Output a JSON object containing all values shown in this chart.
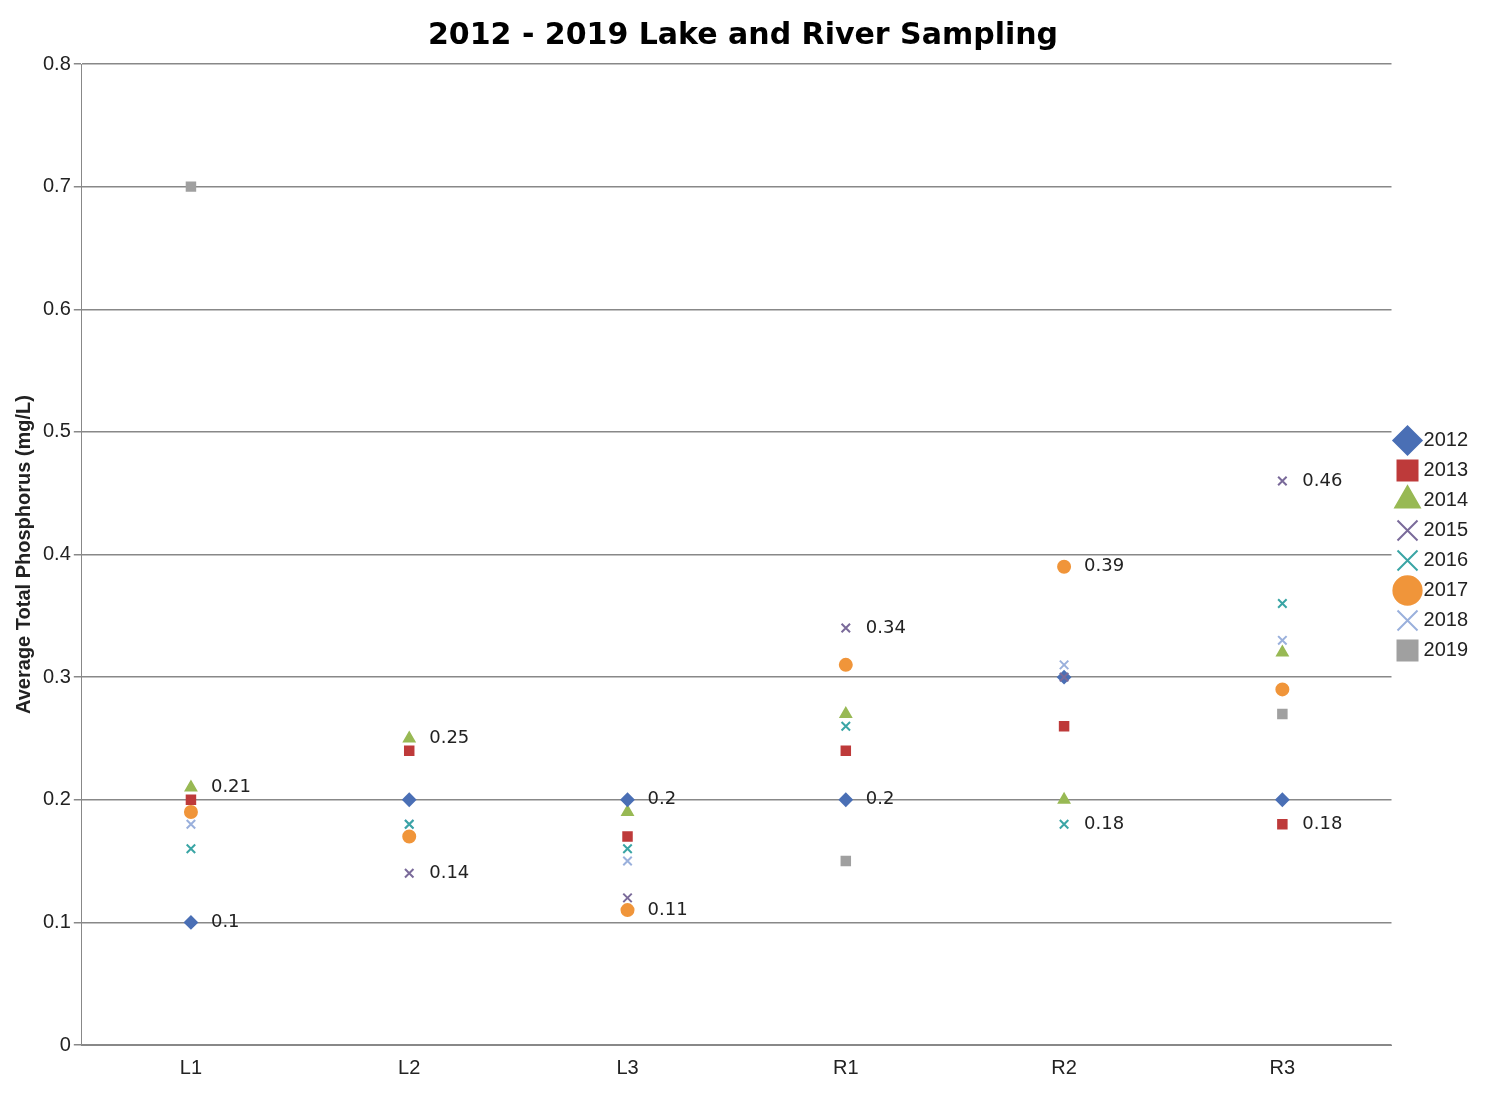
{
  "chart_data": {
    "type": "scatter",
    "title": "2012 - 2019 Lake and River Sampling",
    "ylabel": "Average Total Phosphorus (mg/L)",
    "categories": [
      "L1",
      "L2",
      "L3",
      "R1",
      "R2",
      "R3"
    ],
    "ylim": [
      0,
      0.8
    ],
    "yticks": [
      0,
      0.1,
      0.2,
      0.3,
      0.4,
      0.5,
      0.6,
      0.7,
      0.8
    ],
    "grid": "y",
    "legend": "right",
    "series": [
      {
        "name": "2012",
        "color": "#4a6fb5",
        "marker": "diamond",
        "values": [
          0.1,
          0.2,
          0.2,
          0.2,
          0.3,
          0.2
        ],
        "value_labels": [
          "0.1",
          null,
          "0.2",
          "0.2",
          null,
          null
        ]
      },
      {
        "name": "2013",
        "color": "#be3a3a",
        "marker": "square",
        "values": [
          0.2,
          0.24,
          0.17,
          0.24,
          0.26,
          0.18
        ],
        "value_labels": [
          null,
          null,
          null,
          null,
          null,
          "0.18"
        ]
      },
      {
        "name": "2014",
        "color": "#98b954",
        "marker": "triangle",
        "values": [
          0.21,
          0.25,
          0.19,
          0.27,
          0.2,
          0.32
        ],
        "value_labels": [
          "0.21",
          "0.25",
          null,
          null,
          null,
          null
        ]
      },
      {
        "name": "2015",
        "color": "#7a6a9a",
        "marker": "cross",
        "values": [
          null,
          0.14,
          0.12,
          0.34,
          0.3,
          0.46
        ],
        "value_labels": [
          null,
          "0.14",
          null,
          "0.34",
          null,
          "0.46"
        ]
      },
      {
        "name": "2016",
        "color": "#3aa5a5",
        "marker": "cross",
        "values": [
          0.16,
          0.18,
          0.16,
          0.26,
          0.18,
          0.36
        ],
        "value_labels": [
          null,
          null,
          null,
          null,
          "0.18",
          null
        ]
      },
      {
        "name": "2017",
        "color": "#f0953a",
        "marker": "circle",
        "values": [
          0.19,
          0.17,
          0.11,
          0.31,
          0.39,
          0.29
        ],
        "value_labels": [
          null,
          null,
          "0.11",
          null,
          "0.39",
          null
        ]
      },
      {
        "name": "2018",
        "color": "#9ab0dc",
        "marker": "cross",
        "values": [
          0.18,
          0.18,
          0.15,
          null,
          0.31,
          0.33
        ],
        "value_labels": [
          null,
          null,
          null,
          null,
          null,
          null
        ]
      },
      {
        "name": "2019",
        "color": "#a0a0a0",
        "marker": "square",
        "values": [
          0.7,
          null,
          null,
          0.15,
          null,
          0.27
        ],
        "value_labels": [
          null,
          null,
          null,
          null,
          null,
          null
        ]
      }
    ]
  }
}
